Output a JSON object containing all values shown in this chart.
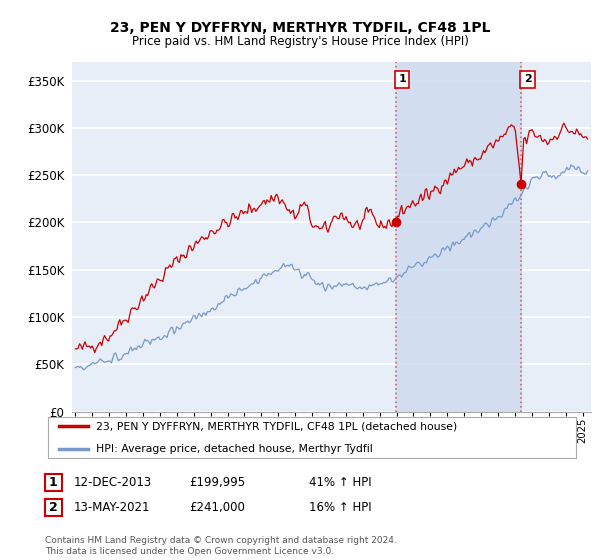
{
  "title": "23, PEN Y DYFFRYN, MERTHYR TYDFIL, CF48 1PL",
  "subtitle": "Price paid vs. HM Land Registry's House Price Index (HPI)",
  "ylabel_ticks": [
    "£0",
    "£50K",
    "£100K",
    "£150K",
    "£200K",
    "£250K",
    "£300K",
    "£350K"
  ],
  "ytick_values": [
    0,
    50000,
    100000,
    150000,
    200000,
    250000,
    300000,
    350000
  ],
  "ylim": [
    0,
    370000
  ],
  "xlim_start": 1994.8,
  "xlim_end": 2025.5,
  "background_color": "#e8eef8",
  "plot_bg_color": "#e8eef8",
  "grid_color": "#ffffff",
  "red_line_color": "#cc0000",
  "blue_line_color": "#7799cc",
  "marker1_date": 2013.95,
  "marker1_value": 199995,
  "marker2_date": 2021.37,
  "marker2_value": 241000,
  "vline_color": "#cc6666",
  "shade_color": "#d0ddf0",
  "legend_red_label": "23, PEN Y DYFFRYN, MERTHYR TYDFIL, CF48 1PL (detached house)",
  "legend_blue_label": "HPI: Average price, detached house, Merthyr Tydfil",
  "annotation1_date": "12-DEC-2013",
  "annotation1_price": "£199,995",
  "annotation1_hpi": "41% ↑ HPI",
  "annotation2_date": "13-MAY-2021",
  "annotation2_price": "£241,000",
  "annotation2_hpi": "16% ↑ HPI",
  "footer": "Contains HM Land Registry data © Crown copyright and database right 2024.\nThis data is licensed under the Open Government Licence v3.0."
}
